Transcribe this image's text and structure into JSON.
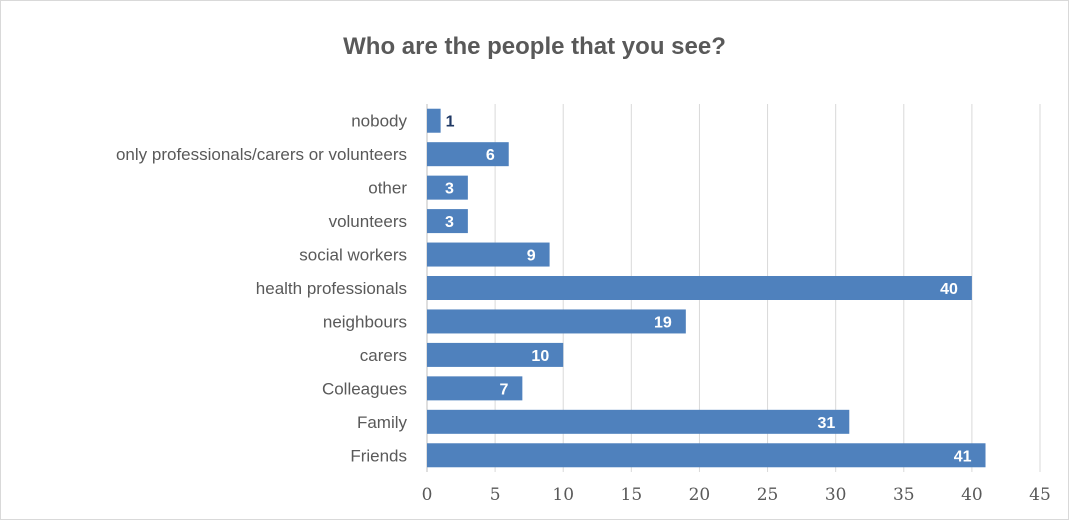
{
  "chart_data": {
    "type": "bar",
    "orientation": "horizontal",
    "title": "Who are the people that you see?",
    "categories": [
      "nobody",
      "only professionals/carers or volunteers",
      "other",
      "volunteers",
      "social workers",
      "health professionals",
      "neighbours",
      "carers",
      "Colleagues",
      "Family",
      "Friends"
    ],
    "values": [
      1,
      6,
      3,
      3,
      9,
      40,
      19,
      10,
      7,
      31,
      41
    ],
    "xlim": [
      0,
      45
    ],
    "xticks": [
      0,
      5,
      10,
      15,
      20,
      25,
      30,
      35,
      40,
      45
    ],
    "grid": true,
    "bar_color": "#4f81bd",
    "label_color_inside": "#ffffff",
    "label_color_outside": "#1f3864"
  }
}
